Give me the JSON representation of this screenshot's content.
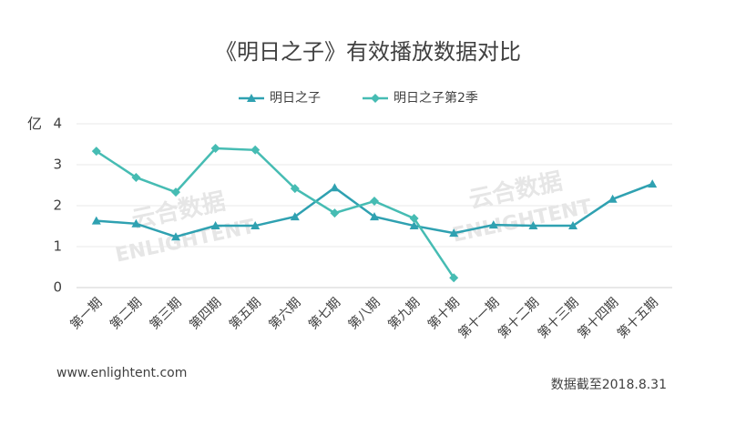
{
  "chart_data": {
    "type": "line",
    "title": "《明日之子》有效播放数据对比",
    "y_label": "亿",
    "categories": [
      "第一期",
      "第二期",
      "第三期",
      "第四期",
      "第五期",
      "第六期",
      "第七期",
      "第八期",
      "第九期",
      "第十期",
      "第十一期",
      "第十二期",
      "第十三期",
      "第十四期",
      "第十五期"
    ],
    "series": [
      {
        "name": "明日之子",
        "color": "#2fa1b1",
        "marker": "triangle",
        "values": [
          1.63,
          1.56,
          1.24,
          1.51,
          1.51,
          1.73,
          2.44,
          1.73,
          1.51,
          1.33,
          1.53,
          1.51,
          1.51,
          2.16,
          2.53
        ]
      },
      {
        "name": "明日之子第2季",
        "color": "#46bcb3",
        "marker": "diamond",
        "values": [
          3.33,
          2.69,
          2.33,
          3.4,
          3.36,
          2.42,
          1.82,
          2.11,
          1.69,
          0.24,
          null,
          null,
          null,
          null,
          null
        ]
      }
    ],
    "ylim": [
      0,
      4
    ],
    "yticks": [
      0,
      1,
      2,
      3,
      4
    ],
    "grid": true,
    "legend": "top",
    "watermark": [
      "云合数据",
      "ENLIGHTENT"
    ],
    "footer_left": "www.enlightent.com",
    "footer_right": "数据截至2018.8.31"
  }
}
